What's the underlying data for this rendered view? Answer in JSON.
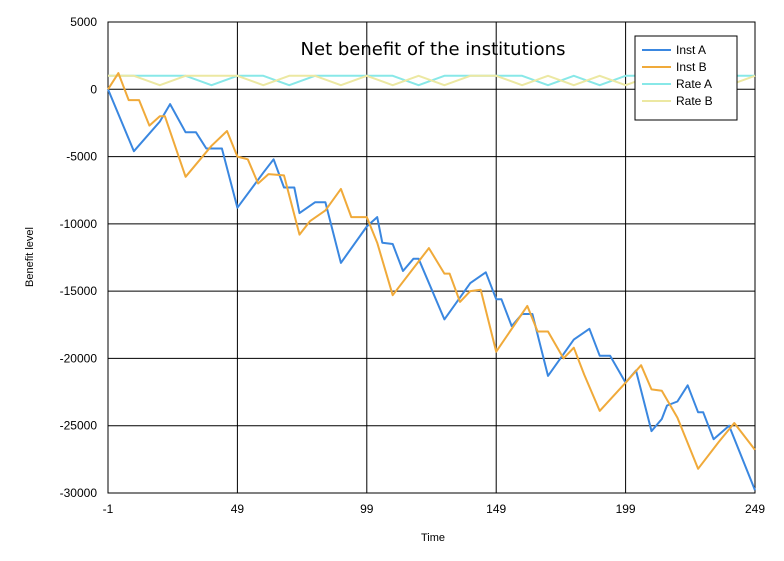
{
  "chart_data": {
    "type": "line",
    "title": "Net benefit of the institutions",
    "xlabel": "Time",
    "ylabel": "Benefit level",
    "xlim": [
      -1,
      249
    ],
    "ylim": [
      -30000,
      5000
    ],
    "x_ticks": [
      -1,
      49,
      99,
      149,
      199,
      249
    ],
    "y_ticks": [
      5000,
      0,
      -5000,
      -10000,
      -15000,
      -20000,
      -25000,
      -30000
    ],
    "grid": true,
    "legend_position": "top-right",
    "series": [
      {
        "name": "Inst A",
        "color": "#3a87e0",
        "x": [
          -1,
          9,
          19,
          23,
          29,
          33,
          37,
          43,
          49,
          59,
          63,
          67,
          71,
          73,
          79,
          83,
          89,
          99,
          103,
          105,
          109,
          113,
          117,
          119,
          129,
          139,
          145,
          149,
          151,
          155,
          159,
          163,
          169,
          179,
          185,
          189,
          193,
          199,
          203,
          209,
          213,
          215,
          219,
          223,
          227,
          229,
          233,
          239,
          249
        ],
        "values": [
          0,
          -4600,
          -2400,
          -1100,
          -3200,
          -3200,
          -4400,
          -4400,
          -8800,
          -6200,
          -5200,
          -7300,
          -7300,
          -9200,
          -8400,
          -8400,
          -12900,
          -10200,
          -9500,
          -11400,
          -11500,
          -13500,
          -12600,
          -12600,
          -17100,
          -14400,
          -13600,
          -15600,
          -15600,
          -17600,
          -16700,
          -16700,
          -21300,
          -18600,
          -17800,
          -19800,
          -19800,
          -21800,
          -20900,
          -25400,
          -24500,
          -23500,
          -23200,
          -22000,
          -24000,
          -24000,
          -26000,
          -25000,
          -29800
        ]
      },
      {
        "name": "Inst B",
        "color": "#f0aa3a",
        "x": [
          -1,
          3,
          7,
          11,
          15,
          19,
          21,
          29,
          39,
          45,
          49,
          53,
          57,
          61,
          67,
          73,
          77,
          83,
          89,
          93,
          99,
          103,
          109,
          119,
          123,
          129,
          131,
          135,
          139,
          143,
          149,
          161,
          165,
          169,
          175,
          179,
          183,
          189,
          199,
          205,
          209,
          213,
          219,
          227,
          235,
          241,
          249
        ],
        "values": [
          0,
          1200,
          -800,
          -800,
          -2700,
          -2000,
          -2000,
          -6500,
          -4200,
          -3100,
          -5000,
          -5200,
          -7000,
          -6300,
          -6400,
          -10800,
          -9800,
          -9000,
          -7400,
          -9500,
          -9500,
          -11400,
          -15300,
          -12800,
          -11800,
          -13700,
          -13700,
          -15800,
          -15000,
          -14900,
          -19500,
          -16100,
          -18000,
          -18000,
          -20000,
          -19200,
          -21200,
          -23900,
          -21800,
          -20500,
          -22300,
          -22400,
          -24400,
          -28200,
          -26200,
          -24800,
          -26800
        ]
      },
      {
        "name": "Rate A",
        "color": "#88e8e8",
        "x": [
          -1,
          9,
          19,
          29,
          39,
          49,
          59,
          69,
          79,
          89,
          99,
          109,
          119,
          129,
          139,
          149,
          159,
          169,
          179,
          189,
          199,
          209,
          219,
          229,
          239,
          249
        ],
        "values": [
          1000,
          1000,
          1000,
          1000,
          300,
          1000,
          1000,
          300,
          1000,
          1000,
          1000,
          1000,
          300,
          1000,
          1000,
          1000,
          1000,
          300,
          1000,
          300,
          1000,
          1000,
          1000,
          1000,
          1000,
          1000
        ]
      },
      {
        "name": "Rate B",
        "color": "#ece8a2",
        "x": [
          -1,
          9,
          19,
          29,
          39,
          49,
          59,
          69,
          79,
          89,
          99,
          109,
          119,
          129,
          139,
          149,
          159,
          169,
          179,
          189,
          199,
          209,
          219,
          229,
          239,
          249
        ],
        "values": [
          1000,
          1000,
          300,
          1000,
          1000,
          1000,
          300,
          1000,
          1000,
          300,
          1000,
          300,
          1000,
          300,
          1000,
          1000,
          300,
          1000,
          300,
          1000,
          300,
          1000,
          300,
          1000,
          300,
          1000
        ]
      }
    ]
  }
}
